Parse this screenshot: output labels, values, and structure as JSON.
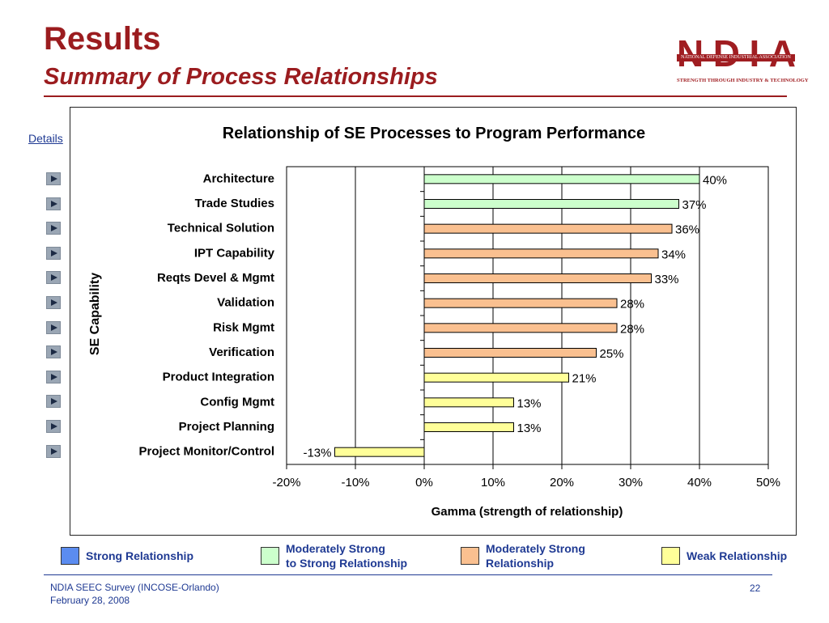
{
  "slide": {
    "title": "Results",
    "subtitle": "Summary of Process Relationships",
    "details_link": "Details",
    "footer_line1": "NDIA SEEC Survey (INCOSE-Orlando)",
    "footer_line2": "February 28, 2008",
    "page_number": "22"
  },
  "logo": {
    "letters": [
      "N",
      "D",
      "I",
      "A"
    ],
    "band_text": "NATIONAL DEFENSE INDUSTRIAL ASSOCIATION",
    "tagline": "STRENGTH THROUGH INDUSTRY & TECHNOLOGY",
    "color": "#a01d21"
  },
  "legend": [
    {
      "label_line1": "Strong Relationship",
      "label_line2": "",
      "color": "#5b8cf0"
    },
    {
      "label_line1": "Moderately Strong",
      "label_line2": "to Strong Relationship",
      "color": "#ccffcc"
    },
    {
      "label_line1": "Moderately Strong",
      "label_line2": "Relationship",
      "color": "#fac090"
    },
    {
      "label_line1": "Weak Relationship",
      "label_line2": "",
      "color": "#ffff99"
    }
  ],
  "chart_data": {
    "type": "bar",
    "orientation": "horizontal",
    "title": "Relationship of SE Processes to Program Performance",
    "xlabel": "Gamma (strength of relationship)",
    "ylabel": "SE Capability",
    "xlim": [
      -20,
      50
    ],
    "xticks": [
      "-20%",
      "-10%",
      "0%",
      "10%",
      "20%",
      "30%",
      "40%",
      "50%"
    ],
    "grid": "vertical",
    "categories": [
      "Architecture",
      "Trade Studies",
      "Technical Solution",
      "IPT Capability",
      "Reqts Devel & Mgmt",
      "Validation",
      "Risk Mgmt",
      "Verification",
      "Product Integration",
      "Config Mgmt",
      "Project Planning",
      "Project Monitor/Control"
    ],
    "values": [
      40,
      37,
      36,
      34,
      33,
      28,
      28,
      25,
      21,
      13,
      13,
      -13
    ],
    "value_labels": [
      "40%",
      "37%",
      "36%",
      "34%",
      "33%",
      "28%",
      "28%",
      "25%",
      "21%",
      "13%",
      "13%",
      "-13%"
    ],
    "colors": [
      "#ccffcc",
      "#ccffcc",
      "#fac090",
      "#fac090",
      "#fac090",
      "#fac090",
      "#fac090",
      "#fac090",
      "#ffff99",
      "#ffff99",
      "#ffff99",
      "#ffff99"
    ]
  }
}
